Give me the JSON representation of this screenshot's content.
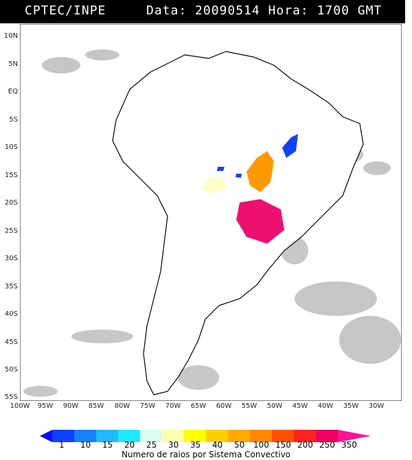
{
  "header": {
    "source": "CPTEC/INPE",
    "datetime": "Data: 20090514 Hora: 1700 GMT"
  },
  "lat_labels": [
    "10N",
    "5N",
    "EQ",
    "5S",
    "10S",
    "15S",
    "20S",
    "25S",
    "30S",
    "35S",
    "40S",
    "45S",
    "50S",
    "55S"
  ],
  "lon_labels": [
    "100W",
    "95W",
    "90W",
    "85W",
    "80W",
    "75W",
    "70W",
    "65W",
    "60W",
    "55W",
    "50W",
    "45W",
    "40W",
    "35W",
    "30W"
  ],
  "colorbar": {
    "labels": [
      "1",
      "10",
      "15",
      "20",
      "25",
      "30",
      "35",
      "40",
      "50",
      "100",
      "150",
      "200",
      "250",
      "350"
    ],
    "colors": [
      "#0a0aff",
      "#1040ff",
      "#1880ff",
      "#20b8ff",
      "#20e8ff",
      "#d8fff0",
      "#ffffb0",
      "#ffff00",
      "#ffd000",
      "#ffaa00",
      "#ff8800",
      "#ff5000",
      "#ff2020",
      "#ee0060",
      "#ff1493"
    ],
    "title": "Numero de raios por Sistema Convectivo"
  },
  "colors": {
    "land": "#ffffff",
    "cloud": "#bdbdbd",
    "border": "#000000",
    "grid": "#9a9a9a"
  }
}
